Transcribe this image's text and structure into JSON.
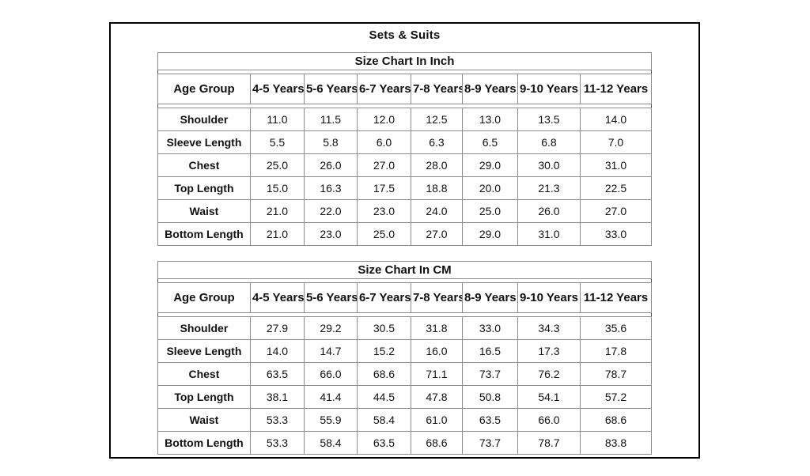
{
  "page": {
    "title": "Sets & Suits"
  },
  "colors": {
    "page_border": "#000000",
    "table_outline": "#4d4d4d",
    "cell_border": "#8c8c8c",
    "text": "#111111",
    "background": "#ffffff"
  },
  "tables": [
    {
      "title": "Size Chart In Inch",
      "columns": [
        "Age Group",
        "4-5 Years",
        "5-6 Years",
        "6-7 Years",
        "7-8 Years",
        "8-9 Years",
        "9-10 Years",
        "11-12 Years"
      ],
      "rows": [
        {
          "label": "Shoulder",
          "values": [
            "11.0",
            "11.5",
            "12.0",
            "12.5",
            "13.0",
            "13.5",
            "14.0"
          ]
        },
        {
          "label": "Sleeve Length",
          "values": [
            "5.5",
            "5.8",
            "6.0",
            "6.3",
            "6.5",
            "6.8",
            "7.0"
          ]
        },
        {
          "label": "Chest",
          "values": [
            "25.0",
            "26.0",
            "27.0",
            "28.0",
            "29.0",
            "30.0",
            "31.0"
          ]
        },
        {
          "label": "Top Length",
          "values": [
            "15.0",
            "16.3",
            "17.5",
            "18.8",
            "20.0",
            "21.3",
            "22.5"
          ]
        },
        {
          "label": "Waist",
          "values": [
            "21.0",
            "22.0",
            "23.0",
            "24.0",
            "25.0",
            "26.0",
            "27.0"
          ]
        },
        {
          "label": "Bottom Length",
          "values": [
            "21.0",
            "23.0",
            "25.0",
            "27.0",
            "29.0",
            "31.0",
            "33.0"
          ]
        }
      ]
    },
    {
      "title": "Size Chart In CM",
      "columns": [
        "Age Group",
        "4-5 Years",
        "5-6 Years",
        "6-7 Years",
        "7-8 Years",
        "8-9 Years",
        "9-10 Years",
        "11-12 Years"
      ],
      "rows": [
        {
          "label": "Shoulder",
          "values": [
            "27.9",
            "29.2",
            "30.5",
            "31.8",
            "33.0",
            "34.3",
            "35.6"
          ]
        },
        {
          "label": "Sleeve Length",
          "values": [
            "14.0",
            "14.7",
            "15.2",
            "16.0",
            "16.5",
            "17.3",
            "17.8"
          ]
        },
        {
          "label": "Chest",
          "values": [
            "63.5",
            "66.0",
            "68.6",
            "71.1",
            "73.7",
            "76.2",
            "78.7"
          ]
        },
        {
          "label": "Top Length",
          "values": [
            "38.1",
            "41.4",
            "44.5",
            "47.8",
            "50.8",
            "54.1",
            "57.2"
          ]
        },
        {
          "label": "Waist",
          "values": [
            "53.3",
            "55.9",
            "58.4",
            "61.0",
            "63.5",
            "66.0",
            "68.6"
          ]
        },
        {
          "label": "Bottom Length",
          "values": [
            "53.3",
            "58.4",
            "63.5",
            "68.6",
            "73.7",
            "78.7",
            "83.8"
          ]
        }
      ]
    }
  ]
}
